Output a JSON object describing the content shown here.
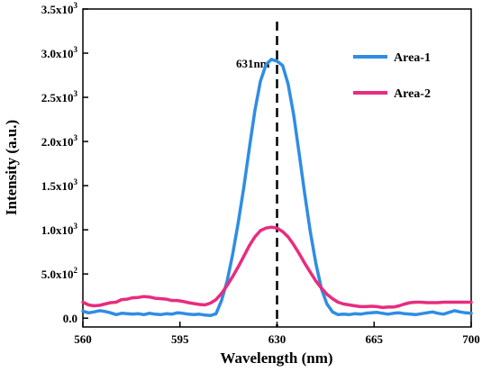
{
  "chart_data": {
    "type": "line",
    "xlabel": "Wavelength (nm)",
    "ylabel": "Intensity (a.u.)",
    "xlim": [
      560,
      700
    ],
    "ylim": [
      -100,
      3500
    ],
    "x_ticks": [
      560,
      595,
      630,
      665,
      700
    ],
    "x_tick_labels": [
      "560",
      "595",
      "630",
      "665",
      "700"
    ],
    "y_ticks": [
      0,
      500,
      1000,
      1500,
      2000,
      2500,
      3000,
      3500
    ],
    "y_tick_labels": [
      {
        "m": "0.0",
        "e": ""
      },
      {
        "m": "5.0x10",
        "e": "2"
      },
      {
        "m": "1.0x10",
        "e": "3"
      },
      {
        "m": "1.5x10",
        "e": "3"
      },
      {
        "m": "2.0x10",
        "e": "3"
      },
      {
        "m": "2.5x10",
        "e": "3"
      },
      {
        "m": "3.0x10",
        "e": "3"
      },
      {
        "m": "3.5x10",
        "e": "3"
      }
    ],
    "grid": false,
    "legend_position": "top-right",
    "annotation": {
      "text": "631nm",
      "x": 630
    },
    "series": [
      {
        "name": "Area-1",
        "color": "#2f8de4",
        "x": [
          560,
          562,
          564,
          566,
          568,
          570,
          572,
          574,
          576,
          578,
          580,
          582,
          584,
          586,
          588,
          590,
          592,
          594,
          596,
          598,
          600,
          602,
          604,
          606,
          608,
          610,
          612,
          614,
          616,
          618,
          620,
          622,
          624,
          626,
          628,
          630,
          632,
          634,
          636,
          638,
          640,
          642,
          644,
          646,
          648,
          650,
          652,
          654,
          656,
          658,
          660,
          662,
          664,
          666,
          668,
          670,
          672,
          674,
          676,
          678,
          680,
          682,
          684,
          686,
          688,
          690,
          692,
          694,
          696,
          698,
          700
        ],
        "values": [
          80,
          60,
          70,
          85,
          75,
          60,
          40,
          55,
          50,
          45,
          50,
          40,
          55,
          45,
          40,
          50,
          45,
          60,
          55,
          45,
          40,
          45,
          35,
          30,
          50,
          200,
          420,
          720,
          1080,
          1480,
          1920,
          2350,
          2680,
          2870,
          2930,
          2910,
          2860,
          2650,
          2300,
          1860,
          1400,
          980,
          620,
          330,
          160,
          70,
          40,
          45,
          40,
          50,
          45,
          55,
          60,
          65,
          55,
          45,
          55,
          60,
          50,
          45,
          40,
          50,
          60,
          70,
          55,
          45,
          65,
          85,
          70,
          60,
          55
        ]
      },
      {
        "name": "Area-2",
        "color": "#e82c7e",
        "x": [
          560,
          562,
          564,
          566,
          568,
          570,
          572,
          574,
          576,
          578,
          580,
          582,
          584,
          586,
          588,
          590,
          592,
          594,
          596,
          598,
          600,
          602,
          604,
          606,
          608,
          610,
          612,
          614,
          616,
          618,
          620,
          622,
          624,
          626,
          628,
          630,
          632,
          634,
          636,
          638,
          640,
          642,
          644,
          646,
          648,
          650,
          652,
          654,
          656,
          658,
          660,
          662,
          664,
          666,
          668,
          670,
          672,
          674,
          676,
          678,
          680,
          682,
          684,
          686,
          688,
          690,
          692,
          694,
          696,
          698,
          700
        ],
        "values": [
          180,
          150,
          140,
          145,
          160,
          175,
          180,
          210,
          215,
          230,
          235,
          245,
          240,
          225,
          220,
          215,
          200,
          200,
          190,
          175,
          165,
          155,
          150,
          170,
          210,
          280,
          370,
          470,
          580,
          700,
          820,
          920,
          990,
          1020,
          1030,
          1020,
          980,
          920,
          830,
          730,
          620,
          520,
          420,
          340,
          270,
          220,
          180,
          160,
          150,
          140,
          130,
          130,
          135,
          130,
          120,
          125,
          125,
          140,
          160,
          175,
          180,
          180,
          175,
          175,
          175,
          180,
          180,
          180,
          180,
          180,
          180
        ]
      }
    ]
  }
}
